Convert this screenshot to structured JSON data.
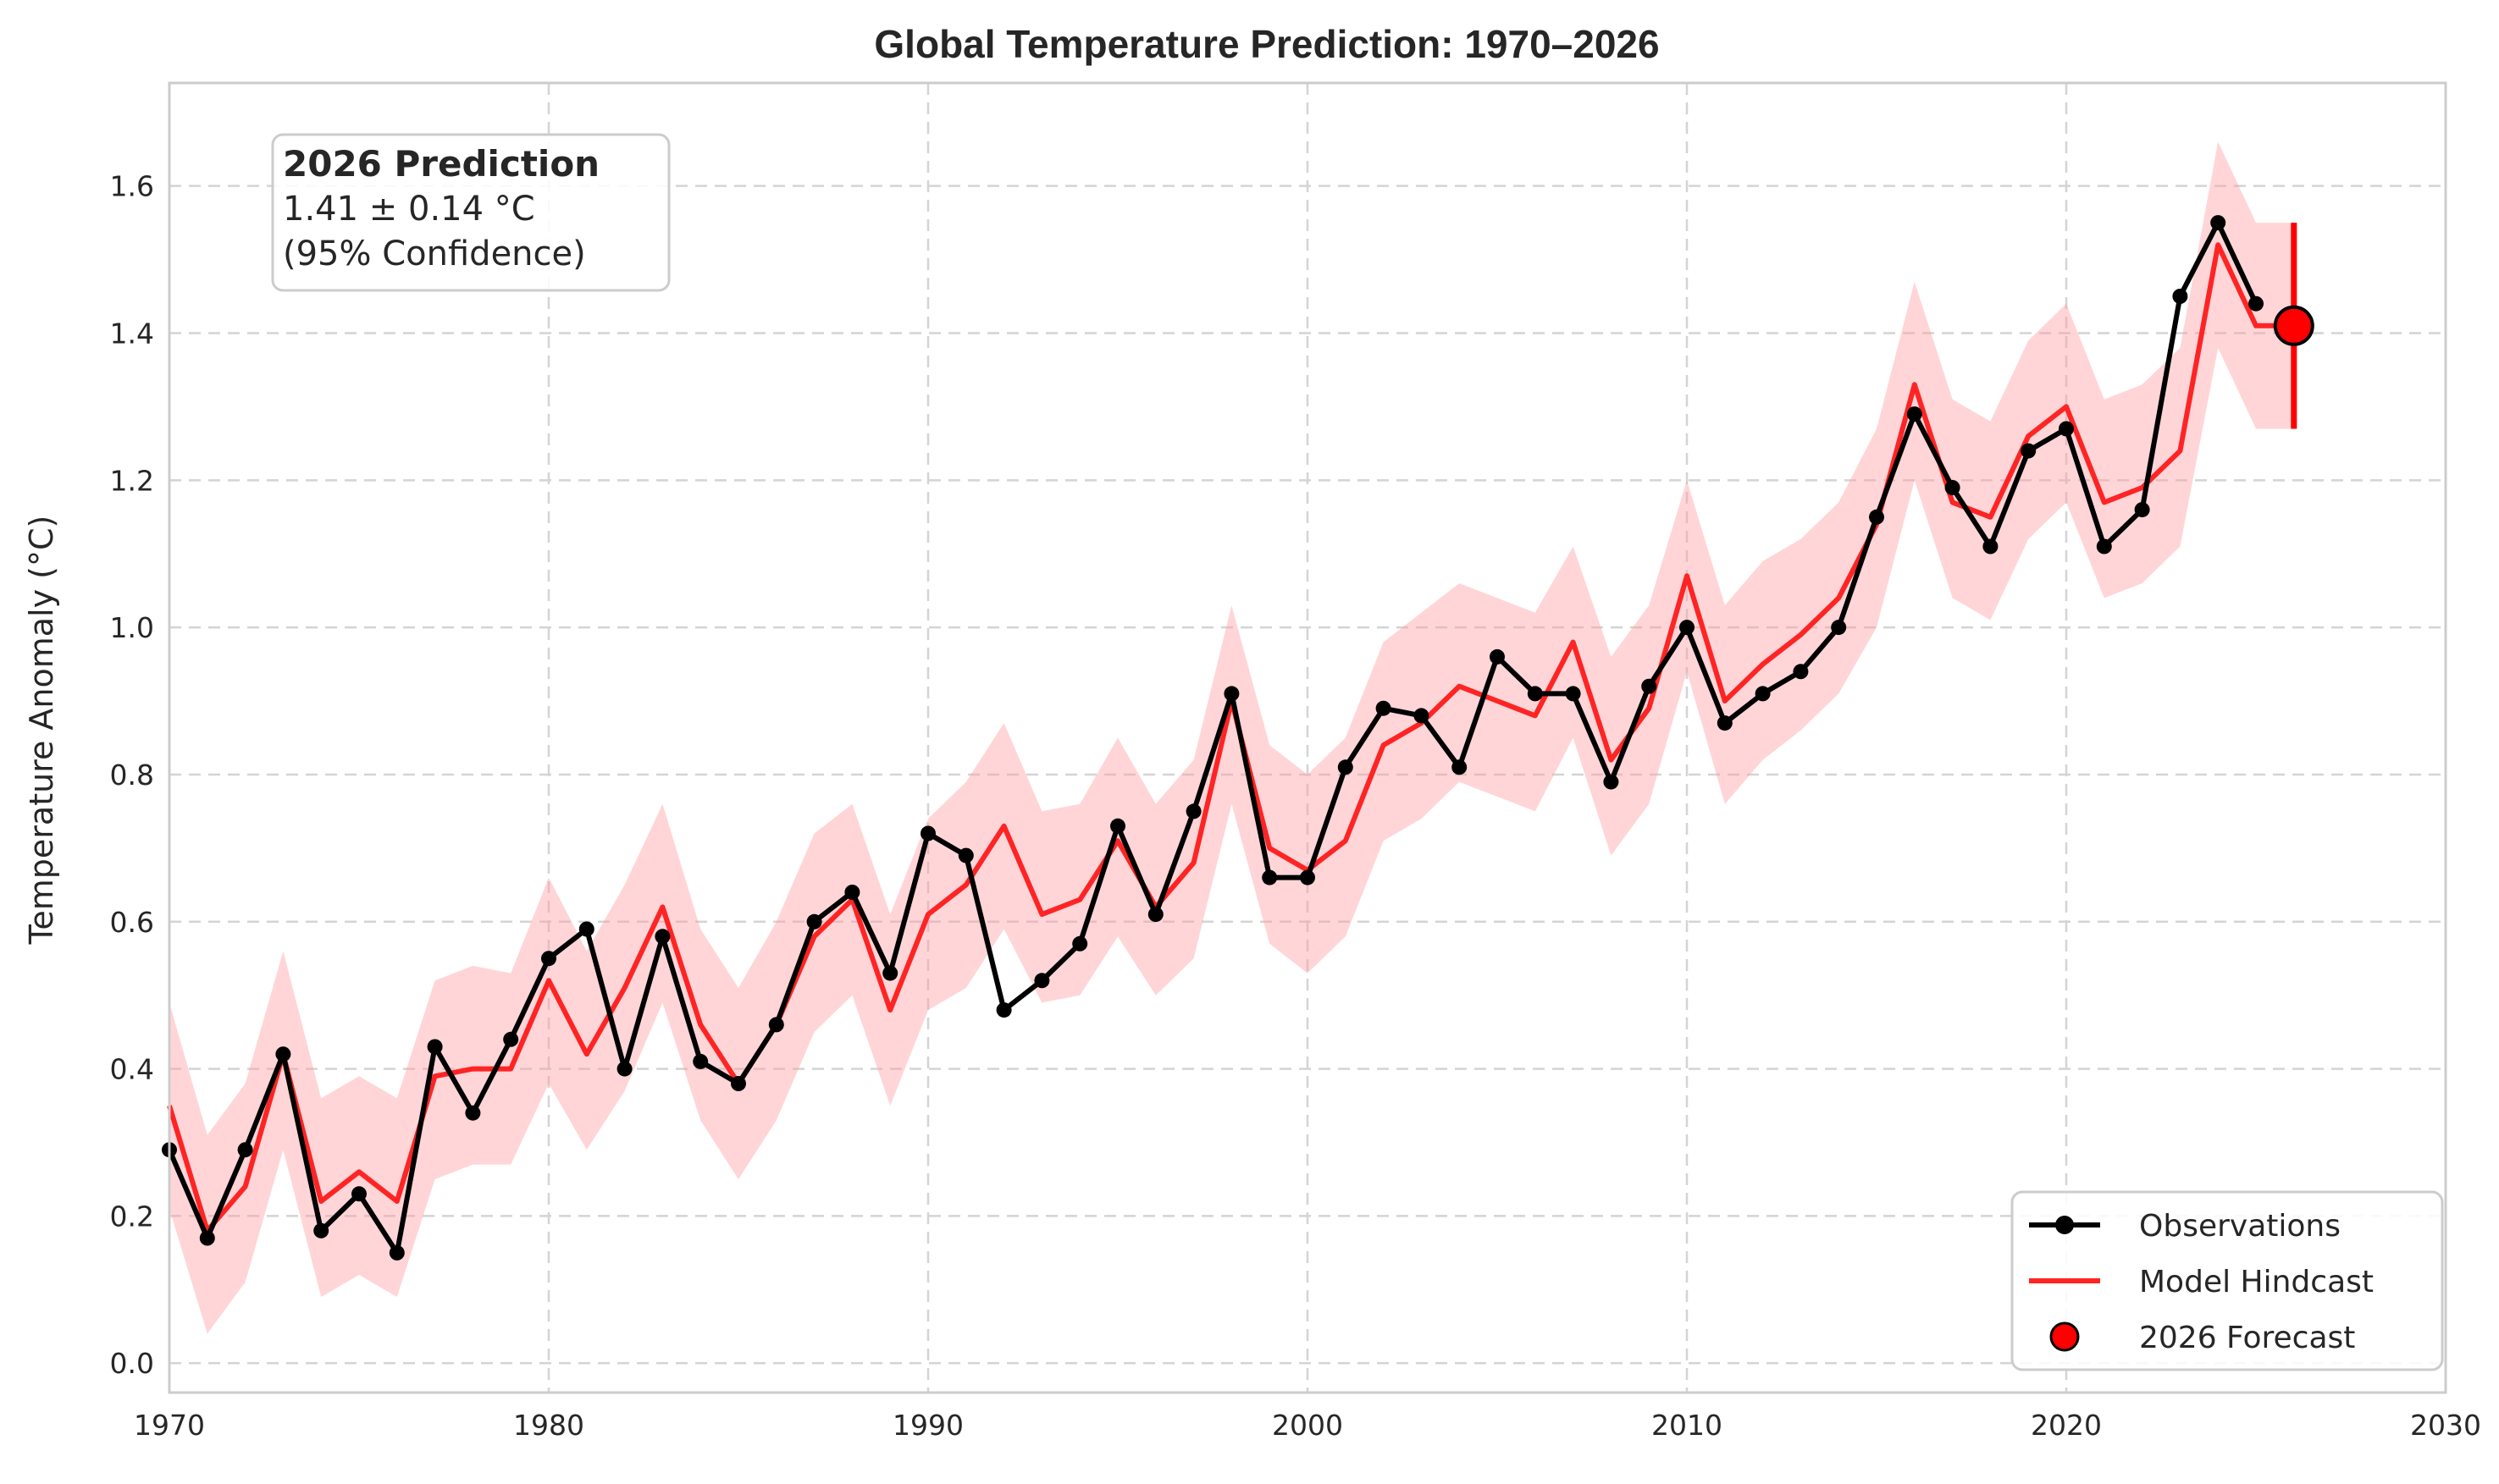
{
  "chart_data": {
    "type": "line",
    "title": "Global Temperature Prediction: 1970–2026",
    "xlabel": "",
    "ylabel": "Temperature Anomaly (°C)",
    "xlim": [
      1970,
      2030
    ],
    "ylim": [
      -0.04,
      1.74
    ],
    "xticks": [
      1970,
      1980,
      1990,
      2000,
      2010,
      2020,
      2030
    ],
    "yticks": [
      0.0,
      0.2,
      0.4,
      0.6,
      0.8,
      1.0,
      1.2,
      1.4,
      1.6
    ],
    "grid": true,
    "legend_position": "bottom-right",
    "series": [
      {
        "name": "Observations",
        "color": "#000000",
        "marker": "circle",
        "x": [
          1970,
          1971,
          1972,
          1973,
          1974,
          1975,
          1976,
          1977,
          1978,
          1979,
          1980,
          1981,
          1982,
          1983,
          1984,
          1985,
          1986,
          1987,
          1988,
          1989,
          1990,
          1991,
          1992,
          1993,
          1994,
          1995,
          1996,
          1997,
          1998,
          1999,
          2000,
          2001,
          2002,
          2003,
          2004,
          2005,
          2006,
          2007,
          2008,
          2009,
          2010,
          2011,
          2012,
          2013,
          2014,
          2015,
          2016,
          2017,
          2018,
          2019,
          2020,
          2021,
          2022,
          2023,
          2024,
          2025
        ],
        "y": [
          0.29,
          0.17,
          0.29,
          0.42,
          0.18,
          0.23,
          0.15,
          0.43,
          0.34,
          0.44,
          0.55,
          0.59,
          0.4,
          0.58,
          0.41,
          0.38,
          0.46,
          0.6,
          0.64,
          0.53,
          0.72,
          0.69,
          0.48,
          0.52,
          0.57,
          0.73,
          0.61,
          0.75,
          0.91,
          0.66,
          0.66,
          0.81,
          0.89,
          0.88,
          0.81,
          0.96,
          0.91,
          0.91,
          0.79,
          0.92,
          1.0,
          0.87,
          0.91,
          0.94,
          1.0,
          1.15,
          1.29,
          1.19,
          1.11,
          1.24,
          1.27,
          1.11,
          1.16,
          1.45,
          1.55,
          1.44
        ]
      },
      {
        "name": "Model Hindcast",
        "color": "#ff2424",
        "x": [
          1970,
          1971,
          1972,
          1973,
          1974,
          1975,
          1976,
          1977,
          1978,
          1979,
          1980,
          1981,
          1982,
          1983,
          1984,
          1985,
          1986,
          1987,
          1988,
          1989,
          1990,
          1991,
          1992,
          1993,
          1994,
          1995,
          1996,
          1997,
          1998,
          1999,
          2000,
          2001,
          2002,
          2003,
          2004,
          2005,
          2006,
          2007,
          2008,
          2009,
          2010,
          2011,
          2012,
          2013,
          2014,
          2015,
          2016,
          2017,
          2018,
          2019,
          2020,
          2021,
          2022,
          2023,
          2024,
          2025,
          2026
        ],
        "y": [
          0.35,
          0.18,
          0.24,
          0.42,
          0.22,
          0.26,
          0.22,
          0.39,
          0.4,
          0.4,
          0.52,
          0.42,
          0.51,
          0.62,
          0.46,
          0.38,
          0.46,
          0.58,
          0.63,
          0.48,
          0.61,
          0.65,
          0.73,
          0.61,
          0.63,
          0.71,
          0.62,
          0.68,
          0.9,
          0.7,
          0.67,
          0.71,
          0.84,
          0.87,
          0.92,
          0.9,
          0.88,
          0.98,
          0.82,
          0.89,
          1.07,
          0.9,
          0.95,
          0.99,
          1.04,
          1.14,
          1.33,
          1.17,
          1.15,
          1.26,
          1.3,
          1.17,
          1.19,
          1.24,
          1.52,
          1.41,
          1.41
        ]
      }
    ],
    "band": {
      "name": "95% interval",
      "color": "#ff9aa2",
      "x": [
        1970,
        1971,
        1972,
        1973,
        1974,
        1975,
        1976,
        1977,
        1978,
        1979,
        1980,
        1981,
        1982,
        1983,
        1984,
        1985,
        1986,
        1987,
        1988,
        1989,
        1990,
        1991,
        1992,
        1993,
        1994,
        1995,
        1996,
        1997,
        1998,
        1999,
        2000,
        2001,
        2002,
        2003,
        2004,
        2005,
        2006,
        2007,
        2008,
        2009,
        2010,
        2011,
        2012,
        2013,
        2014,
        2015,
        2016,
        2017,
        2018,
        2019,
        2020,
        2021,
        2022,
        2023,
        2024,
        2025,
        2026
      ],
      "lower": [
        0.21,
        0.04,
        0.11,
        0.29,
        0.09,
        0.12,
        0.09,
        0.25,
        0.27,
        0.27,
        0.38,
        0.29,
        0.37,
        0.49,
        0.33,
        0.25,
        0.33,
        0.45,
        0.5,
        0.35,
        0.48,
        0.51,
        0.59,
        0.49,
        0.5,
        0.58,
        0.5,
        0.55,
        0.76,
        0.57,
        0.53,
        0.58,
        0.71,
        0.74,
        0.79,
        0.77,
        0.75,
        0.85,
        0.69,
        0.76,
        0.94,
        0.76,
        0.82,
        0.86,
        0.91,
        1.0,
        1.2,
        1.04,
        1.01,
        1.12,
        1.17,
        1.04,
        1.06,
        1.11,
        1.38,
        1.27,
        1.27
      ],
      "upper": [
        0.49,
        0.31,
        0.38,
        0.56,
        0.36,
        0.39,
        0.36,
        0.52,
        0.54,
        0.53,
        0.66,
        0.56,
        0.65,
        0.76,
        0.59,
        0.51,
        0.6,
        0.72,
        0.76,
        0.61,
        0.74,
        0.79,
        0.87,
        0.75,
        0.76,
        0.85,
        0.76,
        0.82,
        1.03,
        0.84,
        0.8,
        0.85,
        0.98,
        1.02,
        1.06,
        1.04,
        1.02,
        1.11,
        0.96,
        1.03,
        1.2,
        1.03,
        1.09,
        1.12,
        1.17,
        1.27,
        1.47,
        1.31,
        1.28,
        1.39,
        1.44,
        1.31,
        1.33,
        1.38,
        1.66,
        1.55,
        1.55
      ]
    },
    "forecast": {
      "name": "2026 Forecast",
      "x": 2026,
      "y": 1.41,
      "low": 1.27,
      "high": 1.55,
      "color": "#ff0000"
    },
    "annotation": {
      "heading": "2026 Prediction",
      "line1": "1.41 ± 0.14 °C",
      "line2": "(95% Confidence)"
    },
    "legend": [
      "Observations",
      "Model Hindcast",
      "2026 Forecast"
    ]
  }
}
